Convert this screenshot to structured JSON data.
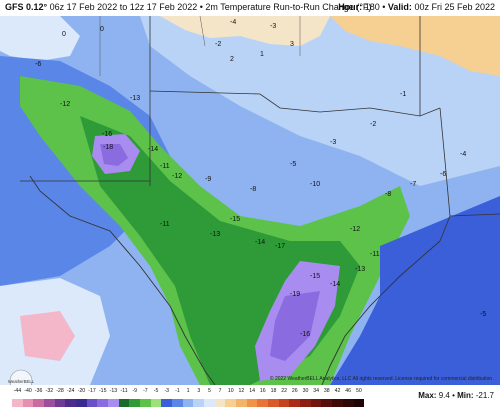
{
  "header": {
    "model": "GFS 0.12°",
    "run_info": "06z 17 Feb 2022 to 12z 17 Feb 2022 • 2m Temperature Run-to-Run Change (°F)",
    "hour_label": "Hour:",
    "hour_value": "180",
    "valid_label": "Valid:",
    "valid_value": "00z Fri 25 Feb 2022"
  },
  "copyright": "© 2022 WeatherBELL Analytics, LLC All rights reserved. License required for commercial distribution",
  "logo_text": "WeatherBELL",
  "colorbar": {
    "ticks": [
      "-44",
      "-40",
      "-36",
      "-32",
      "-28",
      "-24",
      "-20",
      "-17",
      "-15",
      "-13",
      "-11",
      "-9",
      "-7",
      "-5",
      "-3",
      "-1",
      "1",
      "3",
      "5",
      "7",
      "10",
      "12",
      "14",
      "16",
      "18",
      "22",
      "26",
      "30",
      "34",
      "38",
      "42",
      "46",
      "50"
    ],
    "colors": [
      "#f3b7c9",
      "#e78fb0",
      "#c96aa0",
      "#9c4f9c",
      "#6f3a94",
      "#4d2b8a",
      "#3a2a8f",
      "#6a4fc8",
      "#8a6be0",
      "#a98cf0",
      "#1a6b2a",
      "#2f9a38",
      "#5cc24a",
      "#9fe07a",
      "#3a5fd8",
      "#5a86e8",
      "#8fb3f0",
      "#b9d3f7",
      "#dce9fb",
      "#f5e5c8",
      "#f6cf93",
      "#f4b36a",
      "#f0924a",
      "#e8743a",
      "#d85a2a",
      "#c4421e",
      "#a82c17",
      "#8c1d12",
      "#6e150e",
      "#55100b",
      "#3e0b08",
      "#2c0806",
      "#1c0504"
    ]
  },
  "stats": {
    "max_label": "Max:",
    "max_value": "9.4",
    "min_label": "Min:",
    "min_value": "-21.7"
  },
  "map_labels": [
    {
      "t": "0"
    },
    {
      "t": "0"
    },
    {
      "t": "-2"
    },
    {
      "t": "-3"
    },
    {
      "t": "-4"
    },
    {
      "t": "-6"
    },
    {
      "t": "-12"
    },
    {
      "t": "-13"
    },
    {
      "t": "-16"
    },
    {
      "t": "-18"
    },
    {
      "t": "-14"
    },
    {
      "t": "-11"
    },
    {
      "t": "-12"
    },
    {
      "t": "-9"
    },
    {
      "t": "-8"
    },
    {
      "t": "-5"
    },
    {
      "t": "-3"
    },
    {
      "t": "-2"
    },
    {
      "t": "-1"
    },
    {
      "t": "-15"
    },
    {
      "t": "-14"
    },
    {
      "t": "-17"
    },
    {
      "t": "-13"
    },
    {
      "t": "-10"
    },
    {
      "t": "-11"
    },
    {
      "t": "-12"
    },
    {
      "t": "-15"
    },
    {
      "t": "-19"
    },
    {
      "t": "-14"
    },
    {
      "t": "-13"
    },
    {
      "t": "-11"
    },
    {
      "t": "-16"
    },
    {
      "t": "-8"
    },
    {
      "t": "-7"
    },
    {
      "t": "-6"
    },
    {
      "t": "-4"
    },
    {
      "t": "2"
    },
    {
      "t": "1"
    },
    {
      "t": "3"
    },
    {
      "t": "-5"
    }
  ]
}
